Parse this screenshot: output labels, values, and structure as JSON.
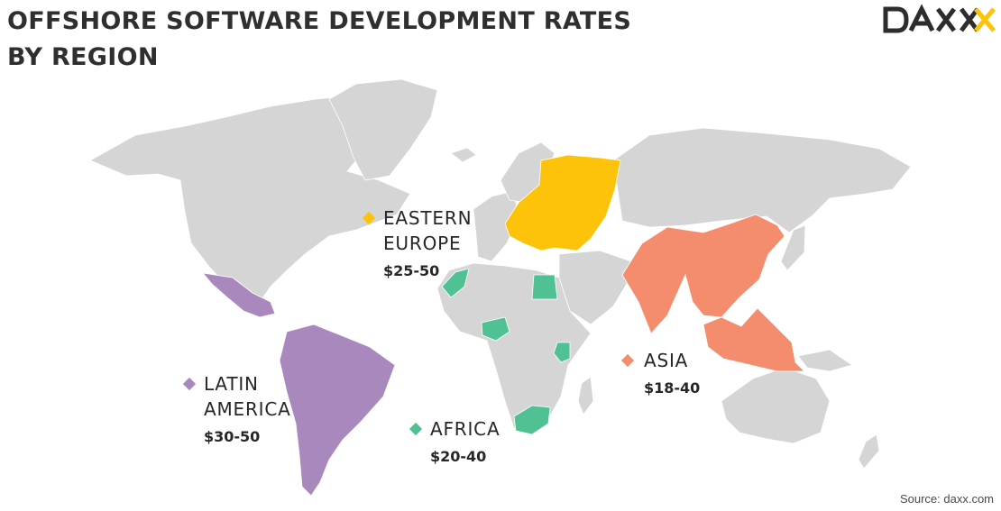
{
  "title": {
    "line1": "OFFSHORE SOFTWARE DEVELOPMENT RATES",
    "line2": "BY REGION"
  },
  "logo": {
    "text": "DAXX"
  },
  "colors": {
    "land": "#d5d5d5",
    "eastern_europe": "#fdc30a",
    "asia": "#f48c6e",
    "latin_america": "#a988bd",
    "africa": "#4fc192"
  },
  "regions": [
    {
      "id": "eastern-europe",
      "name_line1": "EASTERN",
      "name_line2": "EUROPE",
      "rate": "$25-50",
      "color_key": "eastern_europe"
    },
    {
      "id": "asia",
      "name_line1": "ASIA",
      "name_line2": "",
      "rate": "$18-40",
      "color_key": "asia"
    },
    {
      "id": "latin-america",
      "name_line1": "LATIN",
      "name_line2": "AMERICA",
      "rate": "$30-50",
      "color_key": "latin_america"
    },
    {
      "id": "africa",
      "name_line1": "AFRICA",
      "name_line2": "",
      "rate": "$20-40",
      "color_key": "africa"
    }
  ],
  "source": "Source: daxx.com"
}
